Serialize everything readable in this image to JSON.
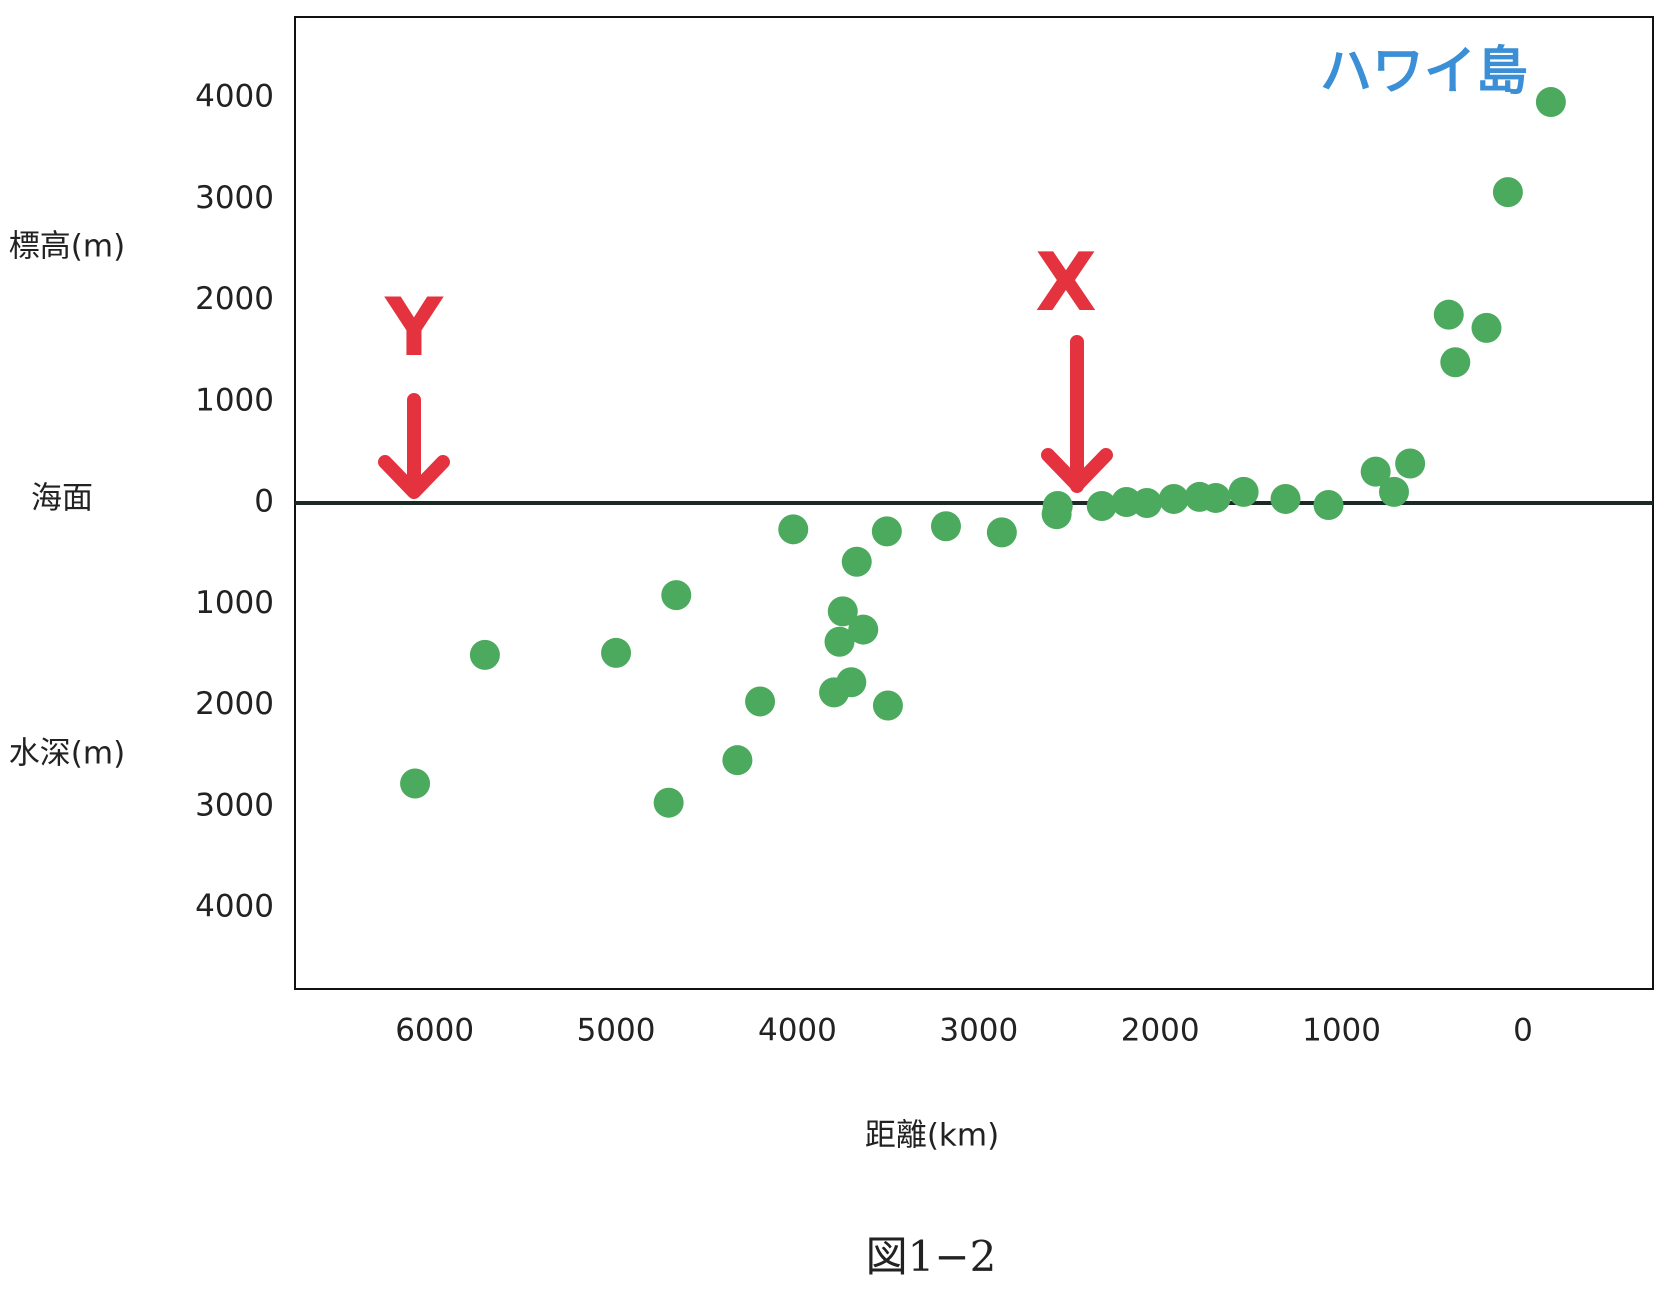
{
  "chart_data": {
    "type": "scatter",
    "x_label": "距離(km)",
    "y_label_top": "標高(m)",
    "y_label_bottom": "水深(m)",
    "sea_level_label": "海面",
    "caption": "図1−2",
    "annotations": [
      "ハワイ島",
      "Y",
      "X"
    ],
    "xlim": [
      6770,
      -717
    ],
    "xticks": [
      6000,
      5000,
      4000,
      3000,
      2000,
      1000,
      0
    ],
    "ylim": [
      -4800,
      4800
    ],
    "yticks": [
      {
        "value": 4000,
        "label": "4000"
      },
      3000,
      2000,
      1000,
      0,
      {
        "value": -1000,
        "label": "1000"
      },
      {
        "value": -2000,
        "label": "2000"
      },
      {
        "value": -3000,
        "label": "3000"
      },
      {
        "value": -4000,
        "label": "4000"
      }
    ],
    "series": [
      {
        "color": "#4caa5e",
        "x": [
          -154,
          83,
          409,
          201,
          373,
          622,
          812,
          711,
          1072,
          1309,
          1540,
          1694,
          1783,
          1925,
          2073,
          2186,
          2322,
          2565,
          2571,
          2873,
          3181,
          3507,
          3673,
          4023,
          3750,
          3637,
          3768,
          3703,
          3798,
          3501,
          4206,
          4331,
          4668,
          5000,
          5723,
          4710,
          6108
        ],
        "values": [
          3960,
          3070,
          1860,
          1730,
          1390,
          390,
          310,
          110,
          -20,
          40,
          110,
          50,
          60,
          40,
          0,
          10,
          -30,
          -30,
          -110,
          -290,
          -230,
          -280,
          -580,
          -260,
          -1070,
          -1250,
          -1370,
          -1770,
          -1870,
          -2000,
          -1960,
          -2540,
          -910,
          -1480,
          -1500,
          -2960,
          -2770
        ]
      }
    ]
  }
}
